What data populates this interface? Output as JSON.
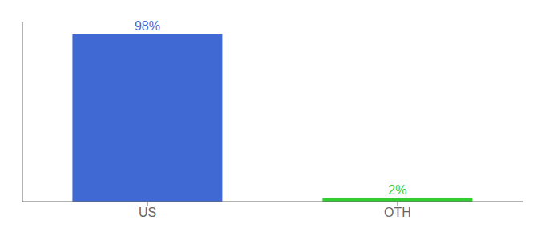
{
  "chart_data": {
    "type": "bar",
    "categories": [
      "US",
      "OTH"
    ],
    "values": [
      98,
      2
    ],
    "value_labels": [
      "98%",
      "2%"
    ],
    "data_labels": true,
    "colors": [
      "#4169d4",
      "#33cc33"
    ],
    "ylim": [
      0,
      105
    ],
    "tick_labels": "x",
    "grid": false
  }
}
